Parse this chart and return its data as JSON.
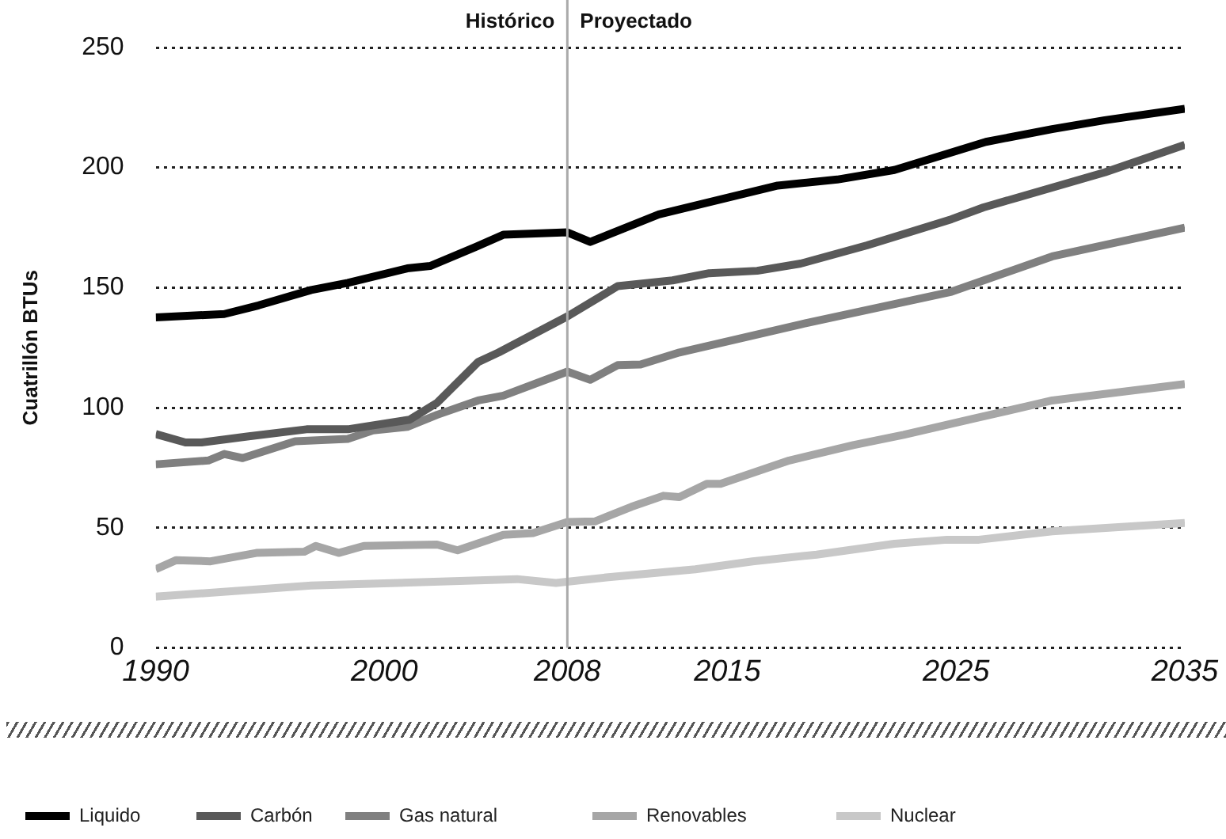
{
  "chart_data": {
    "type": "line",
    "ylabel": "Cuatrillón BTUs",
    "xlim": [
      1990,
      2035
    ],
    "xticks": [
      1990,
      2000,
      2008,
      2015,
      2025,
      2035
    ],
    "ylim": [
      0,
      250
    ],
    "yticks": [
      0,
      50,
      100,
      150,
      200,
      250
    ],
    "grid": "y",
    "legend": "bottom left",
    "marker": "none",
    "line_style": "solid",
    "ref_lines": [
      {
        "axis": "x",
        "value": 2008,
        "color": "#aaaaaa"
      }
    ],
    "annotations": [
      "Histórico",
      "Proyectado"
    ],
    "series": [
      {
        "name": "Liquido",
        "color": "#000000",
        "x": [
          1990,
          1993,
          1994.5,
          1996.8,
          1998.4,
          2001,
          2002,
          2004,
          2005.2,
          2008,
          2009,
          2012,
          2017.2,
          2019.8,
          2022.3,
          2026.3,
          2029.2,
          2031.5,
          2035
        ],
        "values": [
          137.6,
          139,
          142.6,
          149,
          152,
          158,
          159,
          167,
          172,
          173,
          169,
          180.5,
          192.5,
          195,
          199,
          210.7,
          216,
          219.7,
          224.5
        ]
      },
      {
        "name": "Carbón",
        "color": "#595959",
        "x": [
          1990,
          1991.3,
          1992,
          1994,
          1996.6,
          1998.4,
          2001.1,
          2002.3,
          2004.1,
          2005,
          2008,
          2010.2,
          2012.6,
          2014.2,
          2016.3,
          2018.2,
          2021.1,
          2024.8,
          2026.2,
          2031.5,
          2035
        ],
        "values": [
          89,
          85.5,
          85.5,
          88,
          91,
          91,
          95,
          102,
          119,
          123,
          138,
          150.6,
          153,
          156,
          157,
          160,
          167.6,
          178.5,
          183.4,
          198,
          209.5
        ]
      },
      {
        "name": "Gas natural",
        "color": "#808080",
        "x": [
          1990,
          1992.3,
          1993,
          1993.8,
          1996.1,
          1998.4,
          1999.5,
          2001,
          2002.3,
          2004.1,
          2005.2,
          2008,
          2009,
          2010.2,
          2011.2,
          2012.9,
          2018.2,
          2024.8,
          2029.2,
          2035
        ],
        "values": [
          76.4,
          78,
          80.7,
          79,
          86,
          87,
          90.5,
          92,
          97,
          103,
          105,
          115,
          111.6,
          117.7,
          118,
          123,
          134.7,
          148.3,
          163,
          175
        ]
      },
      {
        "name": "Renovables",
        "color": "#a6a6a6",
        "x": [
          1990,
          1990.9,
          1992.4,
          1994.4,
          1996.5,
          1997,
          1998,
          1999.1,
          2002.3,
          2003.2,
          2005.2,
          2006.5,
          2008,
          2009.2,
          2010.8,
          2012.2,
          2012.9,
          2014.1,
          2014.7,
          2017.7,
          2020.5,
          2022.7,
          2025.8,
          2029.2,
          2035
        ],
        "values": [
          32.7,
          36.5,
          36,
          39.5,
          40,
          42.4,
          39.5,
          42.4,
          43,
          40.6,
          47,
          47.8,
          52.4,
          52.6,
          58.7,
          63.3,
          62.8,
          68.3,
          68.3,
          78,
          84.4,
          88.7,
          95.5,
          103,
          109.8
        ]
      },
      {
        "name": "Nuclear",
        "color": "#c8c8c8",
        "x": [
          1990,
          1996.8,
          2005.8,
          2007.5,
          2009.7,
          2013.6,
          2016.1,
          2018.9,
          2022.3,
          2024.6,
          2026,
          2029.2,
          2035
        ],
        "values": [
          21.3,
          25.9,
          28.6,
          27,
          29.3,
          32.7,
          36,
          38.8,
          43.3,
          45,
          45,
          48.5,
          52
        ]
      }
    ]
  }
}
